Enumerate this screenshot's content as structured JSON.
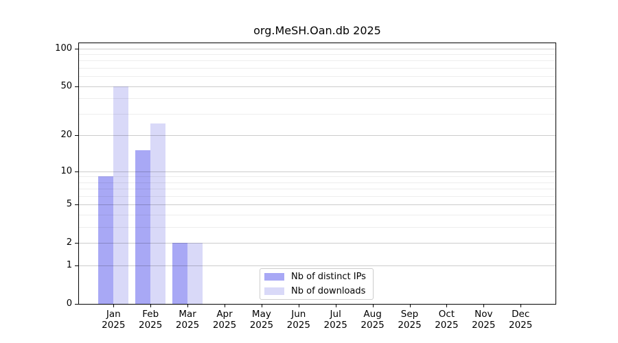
{
  "chart_data": {
    "type": "bar",
    "title": "org.MeSH.Oan.db 2025",
    "categories": [
      "Jan",
      "Feb",
      "Mar",
      "Apr",
      "May",
      "Jun",
      "Jul",
      "Aug",
      "Sep",
      "Oct",
      "Nov",
      "Dec"
    ],
    "year_label": "2025",
    "series": [
      {
        "name": "Nb of distinct IPs",
        "color": "#a8a8f5",
        "values": [
          9,
          15,
          2,
          0,
          0,
          0,
          0,
          0,
          0,
          0,
          0,
          0
        ]
      },
      {
        "name": "Nb of downloads",
        "color": "#d9d9f8",
        "values": [
          50,
          25,
          2,
          0,
          0,
          0,
          0,
          0,
          0,
          0,
          0,
          0
        ]
      }
    ],
    "xlabel": "",
    "ylabel": "",
    "yticks": [
      0,
      1,
      2,
      5,
      10,
      20,
      50,
      100
    ],
    "yminorticks": [
      3,
      4,
      6,
      7,
      8,
      9,
      30,
      40,
      60,
      70,
      80,
      90
    ],
    "yscale": "log1p",
    "ylim": [
      0,
      110
    ],
    "grid": true,
    "legend_position": "bottom-center"
  }
}
